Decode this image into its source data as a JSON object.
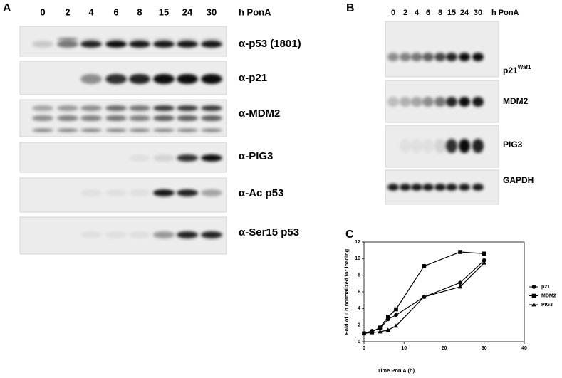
{
  "panel_a": {
    "label": "A",
    "lanes": [
      "0",
      "2",
      "4",
      "6",
      "8",
      "15",
      "24",
      "30"
    ],
    "lane_unit": "h PonA",
    "rows": [
      {
        "label": "α-p53 (1801)"
      },
      {
        "label": "α-p21"
      },
      {
        "label": "α-MDM2"
      },
      {
        "label": "α-PIG3"
      },
      {
        "label": "α-Ac p53"
      },
      {
        "label": "α-Ser15 p53"
      }
    ]
  },
  "panel_b": {
    "label": "B",
    "lanes": [
      "0",
      "2",
      "4",
      "6",
      "8",
      "15",
      "24",
      "30"
    ],
    "lane_unit": "h PonA",
    "rows": [
      {
        "label": "p21",
        "superscript": "Waf1"
      },
      {
        "label": "MDM2"
      },
      {
        "label": "PIG3"
      },
      {
        "label": "GAPDH"
      }
    ]
  },
  "chart_data": {
    "type": "line",
    "panel_label": "C",
    "x_label": "Time Pon A (h)",
    "y_label": "Fold of 0 h normalized for loading",
    "x": [
      0,
      2,
      4,
      6,
      8,
      15,
      24,
      30
    ],
    "series": [
      {
        "name": "p21",
        "color": "#000000",
        "marker": "circle",
        "values": [
          1,
          1.3,
          1.6,
          2.7,
          3.2,
          5.4,
          7.1,
          9.8
        ]
      },
      {
        "name": "MDM2",
        "color": "#000000",
        "marker": "square",
        "values": [
          1,
          1.2,
          1.7,
          3.0,
          3.9,
          9.1,
          10.8,
          10.6
        ]
      },
      {
        "name": "PIG3",
        "color": "#000000",
        "marker": "triangle",
        "values": [
          1,
          1.1,
          1.2,
          1.4,
          1.9,
          5.4,
          6.6,
          9.5
        ]
      }
    ],
    "xlim": [
      0,
      40
    ],
    "xticks": [
      0,
      10,
      20,
      30,
      40
    ],
    "ylim": [
      0,
      12
    ],
    "yticks": [
      0,
      2,
      4,
      6,
      8,
      10,
      12
    ]
  }
}
